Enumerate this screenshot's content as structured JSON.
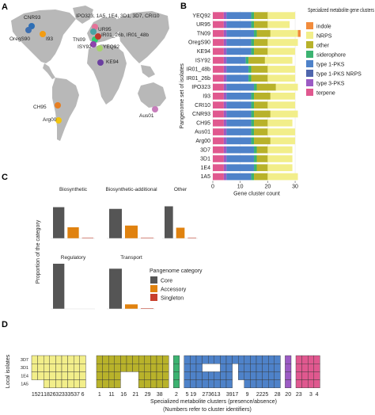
{
  "panels": {
    "a": "A",
    "b": "B",
    "c": "C",
    "d": "D"
  },
  "colors": {
    "indole": "#f28c3c",
    "NRPS": "#f2ee8a",
    "other": "#b8b22a",
    "siderophore": "#3cb371",
    "type 1-PKS": "#4e82c9",
    "type 1-PKS NRPS": "#4f66ad",
    "type 3-PKS": "#9b5bc4",
    "terpene": "#e0588f",
    "core": "#555555",
    "accessory": "#e0820f",
    "singleton": "#c8402d",
    "map_land": "#b8b8b8",
    "map_water": "#ffffff"
  },
  "map": {
    "labels": [
      {
        "text": "CNR93",
        "color": "#2e6fb5"
      },
      {
        "text": "OregS90",
        "color": "#3e6fb0"
      },
      {
        "text": "I93",
        "color": "#f39c12"
      },
      {
        "text": "IPO323, 1A5, 1E4, 3D1, 3D7, CRI10",
        "color": "#e57399"
      },
      {
        "text": "UR95",
        "color": "#4aa3a3"
      },
      {
        "text": "TN09",
        "color": "#2ecc71"
      },
      {
        "text": "IR01_26b, IR01_48b",
        "color": "#c0392b"
      },
      {
        "text": "ISY92",
        "color": "#8e44ad"
      },
      {
        "text": "YEQ92",
        "color": "#a7d26b"
      },
      {
        "text": "KE94",
        "color": "#6b3fa0"
      },
      {
        "text": "CH95",
        "color": "#e67e22"
      },
      {
        "text": "Arg00",
        "color": "#f1c40f"
      },
      {
        "text": "Aus01",
        "color": "#c77dbb"
      }
    ]
  },
  "chart_data": [
    {
      "type": "bar",
      "stacked": true,
      "orientation": "horizontal",
      "legend_title": "Specialized metabolite gene clusters",
      "legend_position": "right",
      "xlabel": "Gene cluster count",
      "ylabel": "Pangenome set of isolates",
      "xlim": [
        0,
        32
      ],
      "xticks": [
        0,
        10,
        20,
        30
      ],
      "categories": [
        "YEQ92",
        "UR95",
        "TN09",
        "OregS90",
        "KE94",
        "ISY92",
        "IR01_48b",
        "IR01_26b",
        "IPO323",
        "I93",
        "CRI10",
        "CNR93",
        "CH95",
        "Aus01",
        "Arg00",
        "3D7",
        "3D1",
        "1E4",
        "1A5"
      ],
      "series": [
        {
          "name": "terpene",
          "values": [
            4,
            4,
            4,
            4,
            4,
            4,
            4,
            4,
            4,
            4,
            4,
            4,
            4,
            4,
            4,
            4,
            4,
            4,
            4
          ]
        },
        {
          "name": "type 3-PKS",
          "values": [
            1,
            1,
            1,
            1,
            1,
            1,
            1,
            1,
            1,
            1,
            1,
            1,
            1,
            1,
            1,
            1,
            1,
            1,
            1
          ]
        },
        {
          "name": "type 1-PKS NRPS",
          "values": [
            0,
            0,
            0,
            0,
            0,
            0,
            0,
            0,
            0,
            0,
            0,
            0,
            0,
            0,
            0,
            0,
            0,
            0,
            0
          ]
        },
        {
          "name": "type 1-PKS",
          "values": [
            9,
            9,
            10,
            9,
            9,
            7,
            8,
            8,
            10,
            9,
            9,
            9,
            9,
            9,
            9,
            10,
            10,
            10,
            9
          ]
        },
        {
          "name": "siderophore",
          "values": [
            1,
            1,
            1,
            1,
            1,
            1,
            1,
            1,
            1,
            1,
            1,
            1,
            1,
            1,
            1,
            1,
            1,
            1,
            1
          ]
        },
        {
          "name": "other",
          "values": [
            5,
            5,
            5,
            5,
            5,
            6,
            6,
            6,
            7,
            6,
            5,
            6,
            5,
            5,
            6,
            4,
            4,
            4,
            5
          ]
        },
        {
          "name": "NRPS",
          "values": [
            10,
            8,
            10,
            11,
            10,
            10,
            10,
            10,
            8,
            9,
            10,
            10,
            9,
            10,
            9,
            9,
            9,
            9,
            11
          ]
        },
        {
          "name": "indole",
          "values": [
            0,
            0,
            1,
            0,
            0,
            0,
            0,
            0,
            0,
            0,
            0,
            0,
            0,
            0,
            0,
            0,
            0,
            0,
            0
          ]
        }
      ]
    },
    {
      "type": "bar",
      "ylabel": "Proportion of the category",
      "legend_title": "Pangenome category",
      "legend": [
        "Core",
        "Accessory",
        "Singleton"
      ],
      "ylim": [
        0,
        1
      ],
      "facets": [
        {
          "name": "Biosynthetic",
          "values": [
            0.73,
            0.26,
            0.01
          ]
        },
        {
          "name": "Biosynthetic-additional",
          "values": [
            0.69,
            0.3,
            0.01
          ]
        },
        {
          "name": "Other",
          "values": [
            0.75,
            0.25,
            0.01
          ]
        },
        {
          "name": "Regulatory",
          "values": [
            1.0,
            0.0,
            0.0
          ]
        },
        {
          "name": "Transport",
          "values": [
            0.89,
            0.1,
            0.01
          ]
        }
      ]
    },
    {
      "type": "heatmap",
      "title": "",
      "ylabel": "Local isolates",
      "xlabel": "Specialized metabolite clusters (presence/absence)",
      "subtitle": "(Numbers refer to cluster identifiers)",
      "rows": [
        "3D7",
        "3D1",
        "1E4",
        "1A5"
      ],
      "groups": [
        {
          "color": "#f2ee8a",
          "tick_labels": [
            "15",
            "21",
            "18",
            "26",
            "32",
            "33",
            "35",
            "37",
            "6"
          ],
          "present": [
            [
              1,
              1,
              1,
              1,
              1,
              1,
              1,
              1,
              1
            ],
            [
              1,
              1,
              1,
              1,
              1,
              1,
              1,
              1,
              1
            ],
            [
              1,
              1,
              1,
              1,
              1,
              1,
              1,
              1,
              1
            ],
            [
              0,
              0,
              1,
              1,
              1,
              1,
              1,
              1,
              1
            ]
          ],
          "tick_cols": [
            0,
            1,
            2,
            3,
            4,
            5,
            6,
            7,
            8
          ],
          "ncols": 10
        },
        {
          "color": "#b8b22a",
          "tick_labels": [
            "1",
            "11",
            "16",
            "21",
            "29",
            "38"
          ],
          "present": [
            [
              1,
              1,
              1,
              1,
              1,
              1,
              1,
              1,
              1,
              1,
              1,
              1
            ],
            [
              1,
              1,
              1,
              1,
              1,
              1,
              1,
              1,
              1,
              1,
              1,
              1
            ],
            [
              1,
              1,
              1,
              1,
              0,
              0,
              0,
              1,
              1,
              1,
              1,
              1
            ],
            [
              1,
              1,
              1,
              1,
              0,
              0,
              0,
              1,
              1,
              1,
              1,
              1
            ]
          ],
          "tick_cols": [
            0,
            2,
            4,
            6,
            8,
            10
          ],
          "ncols": 12
        },
        {
          "color": "#3cb371",
          "tick_labels": [
            "2"
          ],
          "present": [
            [
              1
            ],
            [
              1
            ],
            [
              1
            ],
            [
              1
            ]
          ],
          "tick_cols": [
            0
          ],
          "ncols": 1
        },
        {
          "color": "#4e82c9",
          "tick_labels": [
            "5",
            "19",
            "27",
            "36",
            "13",
            "39",
            "17",
            "9",
            "22",
            "25",
            "28"
          ],
          "present": [
            [
              1,
              1,
              1,
              1,
              1,
              1,
              1,
              1,
              1,
              1,
              1,
              1,
              1,
              1,
              1,
              1
            ],
            [
              1,
              1,
              1,
              0,
              0,
              0,
              1,
              1,
              0,
              1,
              1,
              1,
              1,
              1,
              1,
              1
            ],
            [
              1,
              1,
              1,
              1,
              1,
              1,
              1,
              1,
              0,
              1,
              1,
              1,
              1,
              1,
              1,
              1
            ],
            [
              1,
              1,
              1,
              1,
              1,
              1,
              1,
              1,
              0,
              0,
              1,
              1,
              1,
              1,
              1,
              1
            ]
          ],
          "tick_cols": [
            0,
            1,
            3,
            4,
            5,
            7,
            8,
            10,
            12,
            13,
            15
          ],
          "ncols": 16
        },
        {
          "color": "#9b5bc4",
          "tick_labels": [
            "20"
          ],
          "present": [
            [
              1
            ],
            [
              1
            ],
            [
              1
            ],
            [
              1
            ]
          ],
          "tick_cols": [
            0
          ],
          "ncols": 1
        },
        {
          "color": "#e0588f",
          "tick_labels": [
            "23",
            "3",
            "4"
          ],
          "present": [
            [
              1,
              1,
              1,
              1
            ],
            [
              1,
              1,
              1,
              1
            ],
            [
              1,
              1,
              1,
              1
            ],
            [
              1,
              1,
              1,
              1
            ]
          ],
          "tick_cols": [
            0,
            2,
            3
          ],
          "ncols": 4
        }
      ]
    }
  ]
}
